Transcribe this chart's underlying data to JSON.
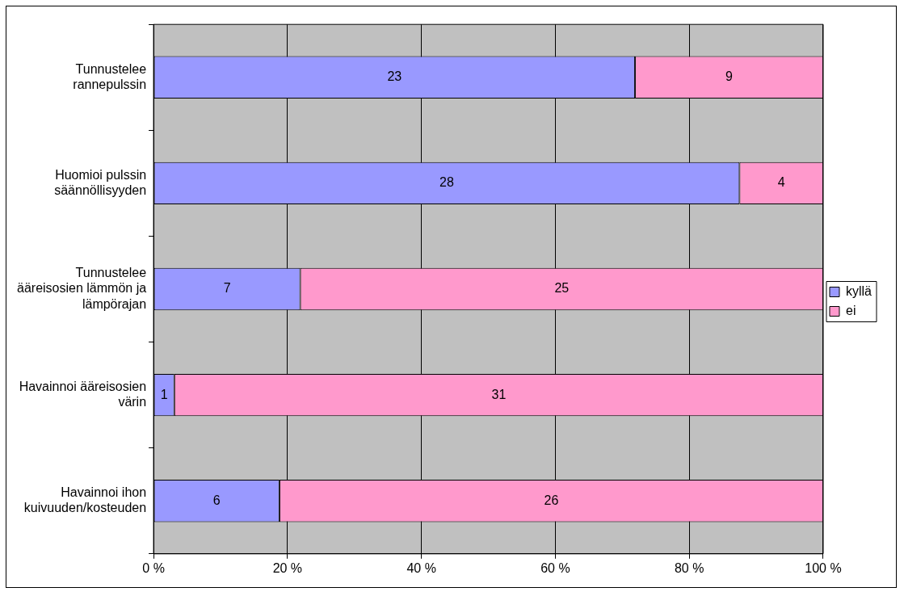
{
  "chart_data": {
    "type": "bar",
    "orientation": "horizontal",
    "stacked": true,
    "categories": [
      "Tunnustelee rannepulssin",
      "Huomioi pulssin säännöllisyyden",
      "Tunnustelee ääreisosien lämmön ja lämpörajan",
      "Havainnoi ääreisosien värin",
      "Havainnoi ihon kuivuuden/kosteuden"
    ],
    "series": [
      {
        "name": "kyllä",
        "color": "#9999ff",
        "values": [
          71.9,
          87.5,
          21.9,
          3.1,
          18.8
        ]
      },
      {
        "name": "ei",
        "color": "#ff99cc",
        "values": [
          28.1,
          12.5,
          78.1,
          96.9,
          81.2
        ]
      }
    ],
    "annotations": [
      "23",
      "9",
      "28",
      "4",
      "7",
      "25",
      "1",
      "31",
      "6",
      "26"
    ],
    "xlim": [
      0,
      100
    ],
    "xticks": [
      {
        "value": 0,
        "label": "0 %"
      },
      {
        "value": 20,
        "label": "20 %"
      },
      {
        "value": 40,
        "label": "40 %"
      },
      {
        "value": 60,
        "label": "60 %"
      },
      {
        "value": 80,
        "label": "80 %"
      },
      {
        "value": 100,
        "label": "100 %"
      }
    ],
    "grid": "x",
    "legend": "right"
  }
}
